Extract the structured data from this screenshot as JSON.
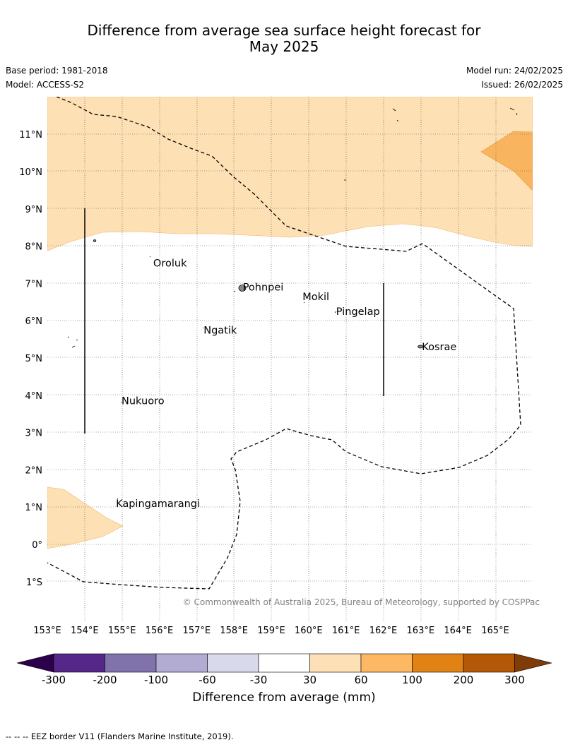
{
  "header": {
    "title_line1": "Difference from average sea surface height forecast for",
    "title_line2": "May 2025",
    "base_period": "Base period: 1981-2018",
    "model": "Model: ACCESS-S2",
    "model_run": "Model run: 24/02/2025",
    "issued": "Issued: 26/02/2025"
  },
  "map": {
    "lon_labels": [
      "153°E",
      "154°E",
      "155°E",
      "156°E",
      "157°E",
      "158°E",
      "159°E",
      "160°E",
      "161°E",
      "162°E",
      "163°E",
      "164°E",
      "165°E"
    ],
    "lat_labels": [
      "11°N",
      "10°N",
      "9°N",
      "8°N",
      "7°N",
      "6°N",
      "5°N",
      "4°N",
      "3°N",
      "2°N",
      "1°N",
      "0°",
      "1°S"
    ],
    "places": [
      {
        "name": "Oroluk",
        "lon": 155.8,
        "lat": 7.55
      },
      {
        "name": "Pohnpei",
        "lon": 158.2,
        "lat": 6.9
      },
      {
        "name": "Mokil",
        "lon": 159.8,
        "lat": 6.65
      },
      {
        "name": "Pingelap",
        "lon": 160.7,
        "lat": 6.25
      },
      {
        "name": "Ngatik",
        "lon": 157.15,
        "lat": 5.75
      },
      {
        "name": "Kosrae",
        "lon": 163.0,
        "lat": 5.3
      },
      {
        "name": "Nukuoro",
        "lon": 154.95,
        "lat": 3.85
      },
      {
        "name": "Kapingamarangi",
        "lon": 154.8,
        "lat": 1.1
      }
    ],
    "copyright": "© Commonwealth of Australia 2025, Bureau of Meteorology, supported by COSPPac",
    "land_fill": "#ffe0b3",
    "ocean_fill": "#ffffff"
  },
  "colorbar": {
    "title": "Difference from average (mm)",
    "ticks": [
      "-300",
      "-200",
      "-100",
      "-60",
      "-30",
      "30",
      "60",
      "100",
      "200",
      "300"
    ],
    "colors": [
      "#2d004b",
      "#542788",
      "#8073ac",
      "#b2abd2",
      "#d8daeb",
      "#ffffff",
      "#fee0b6",
      "#fdb863",
      "#e08214",
      "#b35806",
      "#7f3b08"
    ]
  },
  "footer": "--  --  -- EEZ border V11 (Flanders Marine Institute, 2019)."
}
